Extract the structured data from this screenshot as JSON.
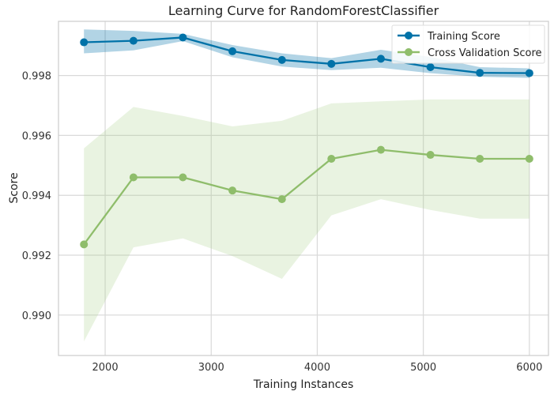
{
  "chart_data": {
    "type": "line",
    "title": "Learning Curve for RandomForestClassifier",
    "xlabel": "Training Instances",
    "ylabel": "Score",
    "xlim": [
      1560,
      6180
    ],
    "ylim": [
      0.98865,
      0.99981
    ],
    "xticks": [
      2000,
      3000,
      4000,
      5000,
      6000
    ],
    "yticks": [
      0.99,
      0.992,
      0.994,
      0.996,
      0.998
    ],
    "xtick_labels": [
      "2000",
      "3000",
      "4000",
      "5000",
      "6000"
    ],
    "ytick_labels": [
      "0.990",
      "0.992",
      "0.994",
      "0.996",
      "0.998"
    ],
    "grid": true,
    "legend_position": "top-right",
    "x": [
      1800,
      2267,
      2733,
      3200,
      3667,
      4133,
      4600,
      5067,
      5533,
      6000
    ],
    "series": [
      {
        "name": "Training Score",
        "color": "#0072a8",
        "band_color": "#0072a8",
        "values": [
          0.99911,
          0.99916,
          0.99927,
          0.99881,
          0.99852,
          0.99839,
          0.99856,
          0.99828,
          0.99809,
          0.99808
        ],
        "upper": [
          0.99954,
          0.99949,
          0.99939,
          0.99902,
          0.99874,
          0.99858,
          0.99886,
          0.99862,
          0.99828,
          0.99824
        ],
        "lower": [
          0.99874,
          0.99884,
          0.99915,
          0.99861,
          0.9983,
          0.99818,
          0.99826,
          0.99808,
          0.99796,
          0.99792
        ]
      },
      {
        "name": "Cross Validation Score",
        "color": "#8fbd6b",
        "band_color": "#a8cf86",
        "values": [
          0.99236,
          0.9946,
          0.9946,
          0.99416,
          0.99387,
          0.99522,
          0.99552,
          0.99535,
          0.99522,
          0.99522
        ],
        "upper": [
          0.99557,
          0.99695,
          0.99665,
          0.9963,
          0.99649,
          0.99707,
          0.99714,
          0.9972,
          0.9972,
          0.9972
        ],
        "lower": [
          0.98912,
          0.99226,
          0.99256,
          0.99197,
          0.99121,
          0.99333,
          0.99387,
          0.99351,
          0.99322,
          0.99322
        ]
      }
    ]
  }
}
